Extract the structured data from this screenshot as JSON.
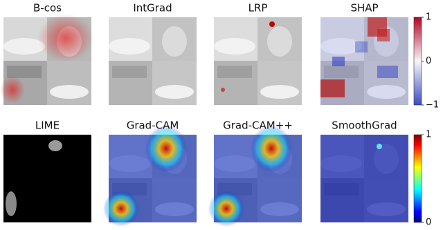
{
  "panels": [
    {
      "title": "B-cos"
    },
    {
      "title": "IntGrad"
    },
    {
      "title": "LRP"
    },
    {
      "title": "SHAP"
    },
    {
      "title": "LIME"
    },
    {
      "title": "Grad-CAM"
    },
    {
      "title": "Grad-CAM++"
    },
    {
      "title": "SmoothGrad"
    }
  ],
  "colorbars": [
    {
      "lim": [
        -1,
        1
      ],
      "ticks": [
        1,
        0,
        {
          "value": -1,
          "label": "−1"
        }
      ]
    },
    {
      "lim": [
        0,
        1
      ],
      "ticks": [
        1,
        0
      ]
    }
  ]
}
